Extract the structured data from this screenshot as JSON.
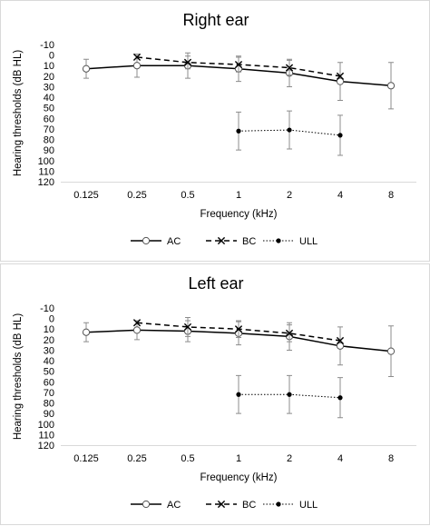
{
  "chart_data": [
    {
      "type": "line",
      "title": "Right ear",
      "xlabel": "Frequency (kHz)",
      "ylabel": "Hearing thresholds (dB HL)",
      "categories": [
        "0.125",
        "0.25",
        "0.5",
        "1",
        "2",
        "4",
        "8"
      ],
      "y_ticks": [
        "-10",
        "0",
        "10",
        "20",
        "30",
        "40",
        "50",
        "60",
        "70",
        "80",
        "90",
        "100",
        "110",
        "120"
      ],
      "ylim": [
        -10,
        120
      ],
      "y_inverted": true,
      "legend_position": "bottom",
      "series": [
        {
          "name": "AC",
          "style": "solid",
          "marker": "open-circle",
          "values": [
            13,
            10,
            10,
            13,
            17,
            25,
            29
          ],
          "error": [
            9,
            11,
            12,
            12,
            13,
            18,
            22
          ]
        },
        {
          "name": "BC",
          "style": "dashed",
          "marker": "x",
          "values": [
            null,
            2,
            7,
            9,
            12,
            20,
            null
          ],
          "error": [
            null,
            null,
            6,
            7,
            7,
            null,
            null
          ]
        },
        {
          "name": "ULL",
          "style": "dotted",
          "marker": "filled-circle",
          "values": [
            null,
            null,
            null,
            72,
            71,
            76,
            null
          ],
          "error": [
            null,
            null,
            null,
            18,
            18,
            19,
            null
          ]
        }
      ]
    },
    {
      "type": "line",
      "title": "Left ear",
      "xlabel": "Frequency (kHz)",
      "ylabel": "Hearing thresholds (dB HL)",
      "categories": [
        "0.125",
        "0.25",
        "0.5",
        "1",
        "2",
        "4",
        "8"
      ],
      "y_ticks": [
        "-10",
        "0",
        "10",
        "20",
        "30",
        "40",
        "50",
        "60",
        "70",
        "80",
        "90",
        "100",
        "110",
        "120"
      ],
      "ylim": [
        -10,
        120
      ],
      "y_inverted": true,
      "legend_position": "bottom",
      "series": [
        {
          "name": "AC",
          "style": "solid",
          "marker": "open-circle",
          "values": [
            13,
            11,
            12,
            14,
            17,
            26,
            31
          ],
          "error": [
            9,
            9,
            10,
            11,
            13,
            18,
            24
          ]
        },
        {
          "name": "BC",
          "style": "dashed",
          "marker": "x",
          "values": [
            null,
            4,
            8,
            10,
            14,
            21,
            null
          ],
          "error": [
            null,
            null,
            9,
            8,
            8,
            null,
            null
          ]
        },
        {
          "name": "ULL",
          "style": "dotted",
          "marker": "filled-circle",
          "values": [
            null,
            null,
            null,
            72,
            72,
            75,
            null
          ],
          "error": [
            null,
            null,
            null,
            18,
            18,
            19,
            null
          ]
        }
      ]
    }
  ]
}
